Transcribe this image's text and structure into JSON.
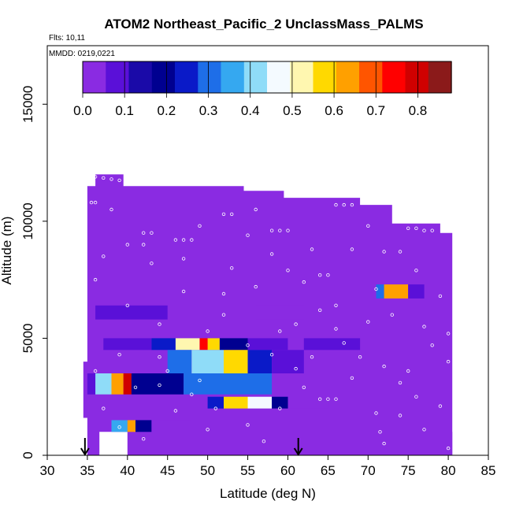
{
  "chart_data": {
    "type": "heatmap",
    "title": "ATOM2 Northeast_Pacific_2 UnclassMass_PALMS",
    "flights_label": "Flts: 10,11",
    "mmdd_label": "MMDD: 0219,0221",
    "xlabel": "Latitude (deg N)",
    "ylabel": "Altitude (m)",
    "xlim": [
      30,
      85
    ],
    "ylim": [
      0,
      17500
    ],
    "x_ticks": [
      30,
      35,
      40,
      45,
      50,
      55,
      60,
      65,
      70,
      75,
      80,
      85
    ],
    "y_ticks": [
      0,
      5000,
      10000,
      15000
    ],
    "colorbar": {
      "range": [
        0,
        0.88
      ],
      "ticks": [
        0.0,
        0.1,
        0.2,
        0.3,
        0.4,
        0.5,
        0.6,
        0.7,
        0.8
      ],
      "tick_labels": [
        "0.0",
        "0.1",
        "0.2",
        "0.3",
        "0.4",
        "0.5",
        "0.6",
        "0.7",
        "0.8"
      ],
      "colors": [
        "#8a2be2",
        "#5a10d8",
        "#1a0aa8",
        "#000090",
        "#0a1ac8",
        "#1e6ee8",
        "#35a8f0",
        "#8fdcf8",
        "#f4faff",
        "#fff7b0",
        "#ffd900",
        "#ffa000",
        "#ff5500",
        "#ff0000",
        "#d00000",
        "#8b1a1a"
      ]
    },
    "coverage_outline": [
      [
        35,
        0
      ],
      [
        35,
        4000
      ],
      [
        34.5,
        4000
      ],
      [
        34.5,
        1600
      ],
      [
        35,
        1600
      ],
      [
        35,
        11500
      ],
      [
        36,
        11500
      ],
      [
        36,
        12000
      ],
      [
        39.5,
        12000
      ],
      [
        39.5,
        11500
      ],
      [
        49,
        11500
      ],
      [
        49,
        11500
      ],
      [
        54.5,
        11500
      ],
      [
        54.5,
        11300
      ],
      [
        59.5,
        11300
      ],
      [
        59.5,
        11000
      ],
      [
        69,
        11000
      ],
      [
        69,
        10700
      ],
      [
        73,
        10700
      ],
      [
        73,
        9900
      ],
      [
        79,
        9900
      ],
      [
        79,
        9500
      ],
      [
        80.5,
        9500
      ],
      [
        80.5,
        0
      ],
      [
        40,
        0
      ],
      [
        40,
        1000
      ],
      [
        36.5,
        1000
      ],
      [
        36.5,
        0
      ]
    ],
    "layers": [
      {
        "alt_range": [
          5800,
          6400
        ],
        "segments": [
          {
            "lat": [
              36,
              45
            ],
            "value": 0.06
          },
          {
            "lat": [
              56,
              62
            ],
            "value": 0.05
          }
        ]
      },
      {
        "alt_range": [
          4500,
          5000
        ],
        "segments": [
          {
            "lat": [
              37,
              43
            ],
            "value": 0.08
          },
          {
            "lat": [
              43,
              46
            ],
            "value": 0.25
          },
          {
            "lat": [
              46,
              49
            ],
            "value": 0.5
          },
          {
            "lat": [
              49,
              50
            ],
            "value": 0.75
          },
          {
            "lat": [
              50,
              51.5
            ],
            "value": 0.6
          },
          {
            "lat": [
              51.5,
              55
            ],
            "value": 0.2
          },
          {
            "lat": [
              55,
              60
            ],
            "value": 0.06
          },
          {
            "lat": [
              62,
              69
            ],
            "value": 0.07
          }
        ]
      },
      {
        "alt_range": [
          3500,
          4500
        ],
        "segments": [
          {
            "lat": [
              45,
              48
            ],
            "value": 0.28
          },
          {
            "lat": [
              48,
              52
            ],
            "value": 0.42
          },
          {
            "lat": [
              52,
              55
            ],
            "value": 0.55
          },
          {
            "lat": [
              55,
              58
            ],
            "value": 0.22
          },
          {
            "lat": [
              58,
              62
            ],
            "value": 0.07
          }
        ]
      },
      {
        "alt_range": [
          2600,
          3500
        ],
        "segments": [
          {
            "lat": [
              35,
              36
            ],
            "value": 0.1
          },
          {
            "lat": [
              36,
              38
            ],
            "value": 0.4
          },
          {
            "lat": [
              38,
              39.5
            ],
            "value": 0.65
          },
          {
            "lat": [
              39.5,
              40.5
            ],
            "value": 0.8
          },
          {
            "lat": [
              40.5,
              47
            ],
            "value": 0.2
          },
          {
            "lat": [
              47,
              58
            ],
            "value": 0.3
          }
        ]
      },
      {
        "alt_range": [
          2000,
          2500
        ],
        "segments": [
          {
            "lat": [
              50,
              52
            ],
            "value": 0.25
          },
          {
            "lat": [
              52,
              55
            ],
            "value": 0.6
          },
          {
            "lat": [
              55,
              58
            ],
            "value": 0.45
          },
          {
            "lat": [
              58,
              60
            ],
            "value": 0.2
          },
          {
            "lat": [
              60,
              65
            ],
            "value": 0.04
          }
        ]
      },
      {
        "alt_range": [
          1000,
          1500
        ],
        "segments": [
          {
            "lat": [
              38,
              40
            ],
            "value": 0.35
          },
          {
            "lat": [
              40,
              41
            ],
            "value": 0.65
          },
          {
            "lat": [
              41,
              43
            ],
            "value": 0.2
          },
          {
            "lat": [
              43,
              48
            ],
            "value": 0.04
          }
        ]
      },
      {
        "alt_range": [
          6700,
          7300
        ],
        "segments": [
          {
            "lat": [
              71,
              72
            ],
            "value": 0.3
          },
          {
            "lat": [
              72,
              75
            ],
            "value": 0.65
          },
          {
            "lat": [
              75,
              77
            ],
            "value": 0.1
          }
        ]
      },
      {
        "alt_range": [
          0,
          1000
        ],
        "segments": [
          {
            "lat": [
              60,
              80.5
            ],
            "value": 0.05
          }
        ]
      }
    ],
    "background_value": 0.01,
    "flight_track_points": [
      [
        36,
        11900
      ],
      [
        37,
        11850
      ],
      [
        38,
        11800
      ],
      [
        39,
        11750
      ],
      [
        35.5,
        10800
      ],
      [
        36,
        10800
      ],
      [
        42,
        9500
      ],
      [
        43,
        9500
      ],
      [
        46,
        9200
      ],
      [
        47,
        9200
      ],
      [
        48,
        9200
      ],
      [
        52,
        10300
      ],
      [
        53,
        10300
      ],
      [
        58,
        9600
      ],
      [
        59,
        9600
      ],
      [
        60,
        9600
      ],
      [
        66,
        10700
      ],
      [
        67,
        10700
      ],
      [
        68,
        10700
      ],
      [
        75,
        9700
      ],
      [
        76,
        9700
      ],
      [
        77,
        9600
      ],
      [
        78,
        9600
      ],
      [
        64,
        7700
      ],
      [
        65,
        7700
      ],
      [
        40,
        9000
      ],
      [
        37,
        8500
      ],
      [
        43,
        8200
      ],
      [
        47,
        7000
      ],
      [
        53,
        8000
      ],
      [
        56,
        7200
      ],
      [
        62,
        7400
      ],
      [
        66,
        6400
      ],
      [
        71,
        7100
      ],
      [
        72,
        8700
      ],
      [
        74,
        8700
      ],
      [
        73,
        6000
      ],
      [
        70,
        5700
      ],
      [
        77,
        5500
      ],
      [
        78,
        4700
      ],
      [
        67,
        4800
      ],
      [
        69,
        4200
      ],
      [
        72,
        3800
      ],
      [
        74,
        3100
      ],
      [
        76,
        2500
      ],
      [
        79,
        2100
      ],
      [
        71,
        1800
      ],
      [
        71.5,
        1000
      ],
      [
        72,
        500
      ],
      [
        64,
        2400
      ],
      [
        65,
        2400
      ],
      [
        66,
        2400
      ],
      [
        62,
        2900
      ],
      [
        61,
        3700
      ],
      [
        58,
        4300
      ],
      [
        63,
        4200
      ],
      [
        48,
        2600
      ],
      [
        44,
        3000
      ],
      [
        41,
        2900
      ],
      [
        37,
        2000
      ],
      [
        39,
        1200
      ],
      [
        42,
        700
      ],
      [
        46,
        1900
      ],
      [
        50,
        1100
      ],
      [
        55,
        1300
      ],
      [
        57,
        600
      ],
      [
        59,
        2000
      ],
      [
        52,
        6000
      ],
      [
        44,
        5600
      ],
      [
        40,
        6400
      ],
      [
        45,
        3600
      ],
      [
        50,
        5300
      ],
      [
        36,
        7500
      ],
      [
        38,
        10500
      ],
      [
        42,
        9000
      ],
      [
        49,
        9800
      ],
      [
        55,
        9400
      ],
      [
        56,
        10500
      ],
      [
        63,
        8800
      ],
      [
        68,
        8800
      ],
      [
        70,
        9800
      ],
      [
        61,
        5600
      ],
      [
        59,
        5300
      ],
      [
        44,
        4200
      ],
      [
        76,
        7900
      ],
      [
        79,
        6800
      ],
      [
        80,
        5200
      ],
      [
        80,
        4000
      ],
      [
        75,
        3600
      ],
      [
        68,
        3300
      ],
      [
        66,
        5400
      ],
      [
        64,
        6200
      ],
      [
        60,
        7900
      ],
      [
        58,
        8600
      ],
      [
        52,
        6900
      ],
      [
        47,
        8400
      ],
      [
        55,
        4700
      ],
      [
        49,
        3200
      ],
      [
        39,
        4300
      ],
      [
        36,
        3600
      ],
      [
        51,
        2000
      ],
      [
        74,
        1700
      ],
      [
        77,
        1100
      ],
      [
        80,
        300
      ]
    ],
    "markers": [
      {
        "lat": 34.7,
        "label": "arrow"
      },
      {
        "lat": 61.3,
        "label": "arrow"
      }
    ]
  }
}
